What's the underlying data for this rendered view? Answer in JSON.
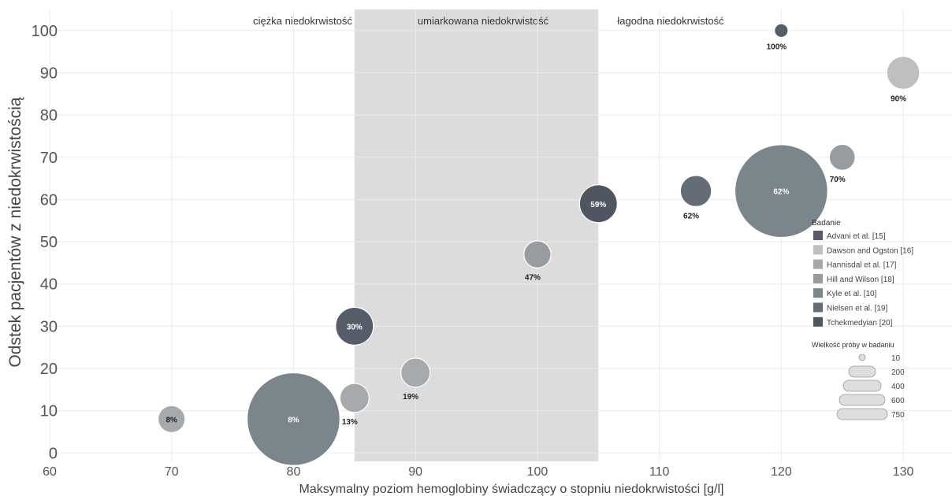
{
  "chart_data": {
    "type": "scatter",
    "title": "",
    "xlabel": "Maksymalny poziom hemoglobiny świadczący o stopniu niedokrwistości [g/l]",
    "ylabel": "Odstek pacjentów z niedokrwistością",
    "xlim": [
      60,
      134
    ],
    "ylim": [
      -2,
      105
    ],
    "xticks": [
      60,
      70,
      80,
      90,
      100,
      110,
      120,
      130
    ],
    "yticks": [
      0,
      10,
      20,
      30,
      40,
      50,
      60,
      70,
      80,
      90,
      100
    ],
    "grid": true,
    "bands": [
      {
        "label": "ciężka niedokrwistość",
        "x_from": 60,
        "x_to": 85,
        "shaded": false
      },
      {
        "label": "umiarkowana niedokrwistość",
        "x_from": 85,
        "x_to": 105,
        "shaded": true
      },
      {
        "label": "łagodna niedokrwistość",
        "x_from": 105,
        "x_to": 134,
        "shaded": false
      }
    ],
    "color_legend": {
      "title": "Badanie",
      "position": "right",
      "entries": [
        {
          "name": "Advani et al. [15]",
          "color": "#565c69"
        },
        {
          "name": "Dawson and Ogston [16]",
          "color": "#bdbfc0"
        },
        {
          "name": "Hannisdal et al. [17]",
          "color": "#a6aaac"
        },
        {
          "name": "Hill and Wilson [18]",
          "color": "#969c9f"
        },
        {
          "name": "Kyle et al. [10]",
          "color": "#7b858c"
        },
        {
          "name": "Nielsen et al. [19]",
          "color": "#646d77"
        },
        {
          "name": "Tchekmedyian [20]",
          "color": "#4f5661"
        }
      ]
    },
    "size_legend": {
      "title": "Wielkość próby w badaniu",
      "position": "right",
      "entries": [
        {
          "label": "10",
          "value": 10
        },
        {
          "label": "200",
          "value": 200
        },
        {
          "label": "400",
          "value": 400
        },
        {
          "label": "600",
          "value": 600
        },
        {
          "label": "750",
          "value": 750
        }
      ]
    },
    "points": [
      {
        "x": 70,
        "y": 8,
        "size": 50,
        "label": "8%",
        "label_inside": true,
        "color": "#a6aaac"
      },
      {
        "x": 80,
        "y": 8,
        "size": 780,
        "label": "8%",
        "label_inside": true,
        "color": "#7b858c"
      },
      {
        "x": 85,
        "y": 13,
        "size": 60,
        "label": "13%",
        "label_inside": false,
        "color": "#a6aaac"
      },
      {
        "x": 85,
        "y": 30,
        "size": 110,
        "label": "30%",
        "label_inside": true,
        "color": "#565c69"
      },
      {
        "x": 90,
        "y": 19,
        "size": 60,
        "label": "19%",
        "label_inside": false,
        "color": "#a6aaac"
      },
      {
        "x": 100,
        "y": 47,
        "size": 50,
        "label": "47%",
        "label_inside": false,
        "color": "#969c9f"
      },
      {
        "x": 105,
        "y": 59,
        "size": 110,
        "label": "59%",
        "label_inside": true,
        "color": "#4f5661"
      },
      {
        "x": 113,
        "y": 62,
        "size": 70,
        "label": "62%",
        "label_inside": false,
        "color": "#646d77"
      },
      {
        "x": 120,
        "y": 62,
        "size": 780,
        "label": "62%",
        "label_inside": true,
        "color": "#7b858c"
      },
      {
        "x": 120,
        "y": 100,
        "size": 8,
        "label": "100%",
        "label_inside": false,
        "color": "#565c69"
      },
      {
        "x": 125,
        "y": 70,
        "size": 45,
        "label": "70%",
        "label_inside": false,
        "color": "#969c9f"
      },
      {
        "x": 130,
        "y": 90,
        "size": 80,
        "label": "90%",
        "label_inside": false,
        "color": "#bdbfc0"
      }
    ]
  }
}
